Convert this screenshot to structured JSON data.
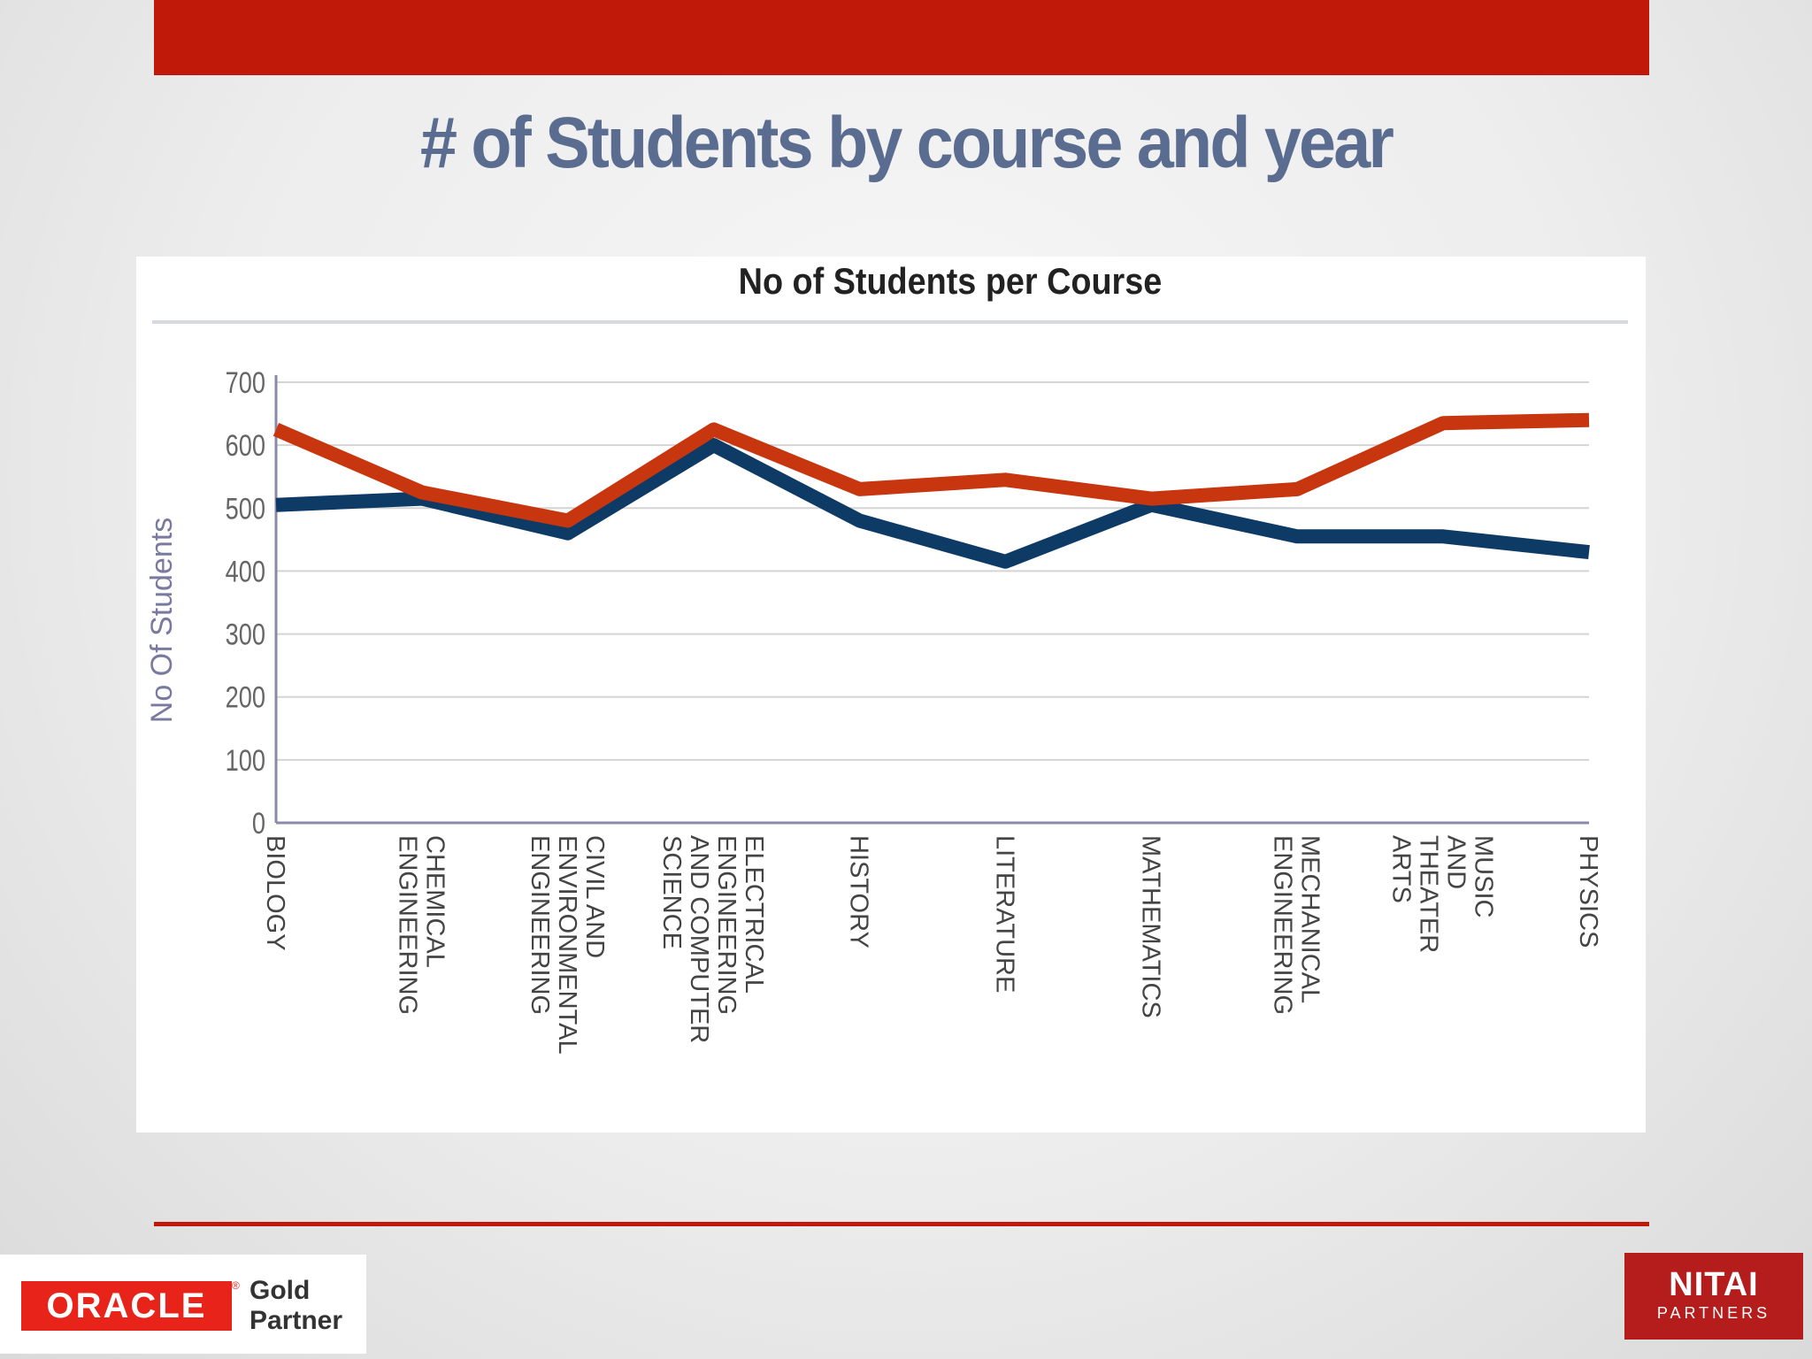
{
  "slide": {
    "title": "# of Students by course and year"
  },
  "chart_data": {
    "type": "line",
    "title": "No of Students per Course",
    "xlabel": "",
    "ylabel": "No Of Students",
    "ylim": [
      0,
      700
    ],
    "yticks": [
      "0",
      "100",
      "200",
      "300",
      "400",
      "500",
      "600",
      "700"
    ],
    "grid": true,
    "categories": [
      [
        "BIOLOGY"
      ],
      [
        "CHEMICAL",
        "ENGINEERING"
      ],
      [
        "CIVIL AND",
        "ENVIRONMENTAL",
        "ENGINEERING"
      ],
      [
        "ELECTRICAL",
        "ENGINEERING",
        "AND COMPUTER",
        "SCIENCE"
      ],
      [
        "HISTORY"
      ],
      [
        "LITERATURE"
      ],
      [
        "MATHEMATICS"
      ],
      [
        "MECHANICAL",
        "ENGINEERING"
      ],
      [
        "MUSIC",
        "AND",
        "THEATER",
        "ARTS"
      ],
      [
        "PHYSICS"
      ]
    ],
    "series": [
      {
        "color": "#0e3a66",
        "values": [
          505,
          515,
          460,
          600,
          480,
          415,
          505,
          455,
          455,
          430
        ]
      },
      {
        "color": "#c8360f",
        "values": [
          625,
          525,
          480,
          625,
          530,
          545,
          515,
          530,
          635,
          640
        ]
      }
    ]
  },
  "logos": {
    "oracle": {
      "word": "ORACLE",
      "mark": "®",
      "tier": "Gold",
      "kind": "Partner",
      "color": "#e8241a"
    },
    "nitai": {
      "name": "NITAI",
      "sub": "PARTNERS",
      "color": "#b51c1c"
    }
  }
}
